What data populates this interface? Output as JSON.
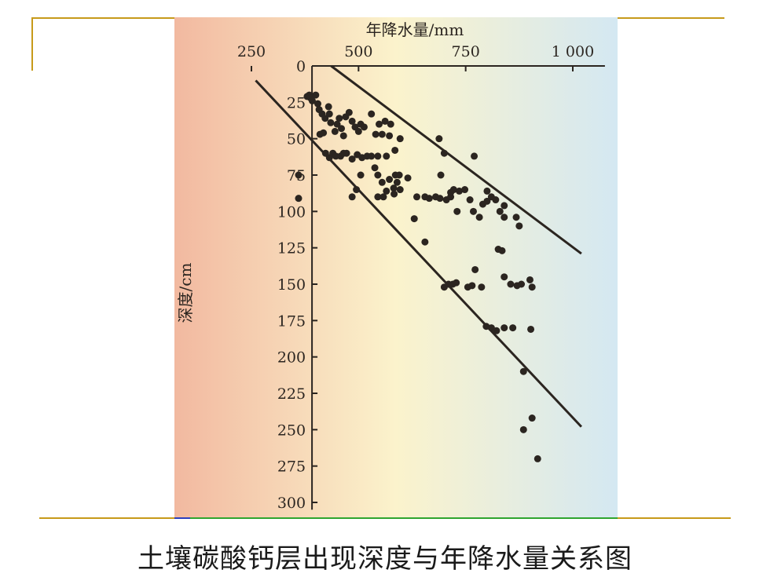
{
  "caption": "土壤碳酸钙层出现深度与年降水量关系图",
  "colors": {
    "frame": "#c79a1a",
    "background_left": "#f2b9a0",
    "background_mid": "#fbf3cc",
    "background_right": "#d4e8f2",
    "ink": "#2b2520"
  },
  "chart_data": {
    "type": "scatter",
    "title": "",
    "xlabel": "年降水量/mm",
    "ylabel": "深度/cm",
    "x_axis_position": "top",
    "y_axis_inverted": true,
    "xlim": [
      230,
      1020
    ],
    "ylim": [
      0,
      305
    ],
    "x_ticks": [
      250,
      500,
      750,
      1000
    ],
    "x_tick_labels": [
      "250",
      "500",
      "750",
      "1 000"
    ],
    "y_ticks": [
      0,
      25,
      50,
      75,
      100,
      125,
      150,
      175,
      200,
      225,
      250,
      275,
      300
    ],
    "y_tick_labels": [
      "0",
      "25",
      "50",
      "75",
      "100",
      "125",
      "150",
      "175",
      "200",
      "225",
      "250",
      "275",
      "300"
    ],
    "grid": false,
    "boundary_lines": [
      {
        "x1": 260,
        "y1": 10,
        "x2": 1020,
        "y2": 248
      },
      {
        "x1": 436,
        "y1": 0,
        "x2": 1020,
        "y2": 129
      }
    ],
    "points": [
      [
        380,
        21
      ],
      [
        385,
        20
      ],
      [
        388,
        22
      ],
      [
        392,
        24
      ],
      [
        400,
        20
      ],
      [
        405,
        26
      ],
      [
        408,
        30
      ],
      [
        415,
        33
      ],
      [
        422,
        36
      ],
      [
        430,
        28
      ],
      [
        432,
        33
      ],
      [
        435,
        39
      ],
      [
        445,
        45
      ],
      [
        450,
        40
      ],
      [
        455,
        36
      ],
      [
        460,
        43
      ],
      [
        465,
        48
      ],
      [
        470,
        35
      ],
      [
        478,
        32
      ],
      [
        485,
        38
      ],
      [
        492,
        42
      ],
      [
        500,
        45
      ],
      [
        505,
        40
      ],
      [
        513,
        42
      ],
      [
        530,
        33
      ],
      [
        540,
        47
      ],
      [
        548,
        40
      ],
      [
        555,
        47
      ],
      [
        562,
        38
      ],
      [
        572,
        48
      ],
      [
        575,
        40
      ],
      [
        585,
        58
      ],
      [
        597,
        50
      ],
      [
        410,
        47
      ],
      [
        418,
        46
      ],
      [
        423,
        60
      ],
      [
        432,
        63
      ],
      [
        440,
        60
      ],
      [
        447,
        62
      ],
      [
        458,
        62
      ],
      [
        465,
        60
      ],
      [
        472,
        60
      ],
      [
        485,
        64
      ],
      [
        497,
        61
      ],
      [
        508,
        63
      ],
      [
        520,
        62
      ],
      [
        530,
        62
      ],
      [
        545,
        62
      ],
      [
        565,
        62
      ],
      [
        538,
        70
      ],
      [
        545,
        75
      ],
      [
        555,
        80
      ],
      [
        565,
        86
      ],
      [
        572,
        78
      ],
      [
        582,
        84
      ],
      [
        586,
        75
      ],
      [
        590,
        80
      ],
      [
        595,
        75
      ],
      [
        505,
        75
      ],
      [
        495,
        85
      ],
      [
        485,
        90
      ],
      [
        545,
        90
      ],
      [
        558,
        90
      ],
      [
        583,
        88
      ],
      [
        597,
        85
      ],
      [
        615,
        77
      ],
      [
        636,
        90
      ],
      [
        655,
        90
      ],
      [
        665,
        91
      ],
      [
        680,
        90
      ],
      [
        690,
        91
      ],
      [
        705,
        92
      ],
      [
        715,
        90
      ],
      [
        722,
        85
      ],
      [
        735,
        86
      ],
      [
        748,
        85
      ],
      [
        760,
        92
      ],
      [
        768,
        100
      ],
      [
        782,
        104
      ],
      [
        790,
        95
      ],
      [
        800,
        86
      ],
      [
        810,
        90
      ],
      [
        820,
        92
      ],
      [
        830,
        100
      ],
      [
        840,
        104
      ],
      [
        688,
        50
      ],
      [
        700,
        60
      ],
      [
        692,
        75
      ],
      [
        715,
        87
      ],
      [
        730,
        100
      ],
      [
        770,
        62
      ],
      [
        800,
        93
      ],
      [
        840,
        96
      ],
      [
        868,
        104
      ],
      [
        875,
        110
      ],
      [
        630,
        105
      ],
      [
        655,
        121
      ],
      [
        700,
        152
      ],
      [
        710,
        150
      ],
      [
        720,
        150
      ],
      [
        728,
        149
      ],
      [
        755,
        152
      ],
      [
        765,
        151
      ],
      [
        772,
        140
      ],
      [
        787,
        152
      ],
      [
        826,
        126
      ],
      [
        835,
        127
      ],
      [
        840,
        145
      ],
      [
        855,
        150
      ],
      [
        870,
        151
      ],
      [
        880,
        150
      ],
      [
        900,
        147
      ],
      [
        905,
        152
      ],
      [
        798,
        179
      ],
      [
        810,
        180
      ],
      [
        822,
        182
      ],
      [
        840,
        180
      ],
      [
        860,
        180
      ],
      [
        902,
        181
      ],
      [
        885,
        210
      ],
      [
        885,
        250
      ],
      [
        905,
        242
      ],
      [
        918,
        270
      ],
      [
        360,
        75
      ],
      [
        360,
        91
      ]
    ]
  }
}
